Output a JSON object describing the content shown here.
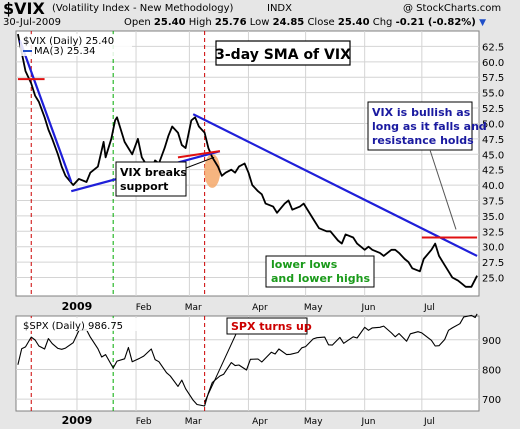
{
  "header": {
    "symbol": "$VIX",
    "description": "(Volatility Index - New Methodology)",
    "exchange": "INDX",
    "copyright": "@ StockCharts.com",
    "date": "30-Jul-2009",
    "open_label": "Open",
    "open": "25.40",
    "high_label": "High",
    "high": "25.76",
    "low_label": "Low",
    "low": "24.85",
    "close_label": "Close",
    "close": "25.40",
    "chg_label": "Chg",
    "chg": "-0.21 (-0.82%)",
    "chg_arrow": "▼"
  },
  "chart_data": [
    {
      "type": "line",
      "legend": [
        "$VIX (Daily) 25.40",
        "MA(3) 25.34"
      ],
      "title_box": "3-day SMA of VIX",
      "ylim": [
        22,
        65
      ],
      "y_ticks": [
        "25.0",
        "27.5",
        "30.0",
        "32.5",
        "35.0",
        "37.5",
        "40.0",
        "42.5",
        "45.0",
        "47.5",
        "50.0",
        "52.5",
        "55.0",
        "57.5",
        "60.0",
        "62.5"
      ],
      "x_tick_labels": [
        "2009",
        "Feb",
        "Mar",
        "Apr",
        "May",
        "Jun",
        "Jul"
      ],
      "series": [
        {
          "name": "MA(3)",
          "color": "#000000",
          "points": [
            [
              "2008-12-01",
              64.5
            ],
            [
              "2008-12-03",
              61.5
            ],
            [
              "2008-12-05",
              58.5
            ],
            [
              "2008-12-08",
              56.5
            ],
            [
              "2008-12-10",
              54.5
            ],
            [
              "2008-12-12",
              53.5
            ],
            [
              "2008-12-15",
              51.0
            ],
            [
              "2008-12-17",
              49.0
            ],
            [
              "2008-12-19",
              47.5
            ],
            [
              "2008-12-22",
              45.0
            ],
            [
              "2008-12-24",
              43.0
            ],
            [
              "2008-12-26",
              41.5
            ],
            [
              "2008-12-30",
              40.0
            ],
            [
              "2009-01-02",
              41.0
            ],
            [
              "2009-01-06",
              40.5
            ],
            [
              "2009-01-08",
              42.0
            ],
            [
              "2009-01-12",
              43.0
            ],
            [
              "2009-01-15",
              47.0
            ],
            [
              "2009-01-16",
              44.5
            ],
            [
              "2009-01-19",
              47.5
            ],
            [
              "2009-01-21",
              50.5
            ],
            [
              "2009-01-22",
              51.0
            ],
            [
              "2009-01-26",
              47.0
            ],
            [
              "2009-01-28",
              46.0
            ],
            [
              "2009-01-30",
              45.0
            ],
            [
              "2009-02-02",
              47.5
            ],
            [
              "2009-02-04",
              44.5
            ],
            [
              "2009-02-06",
              43.5
            ],
            [
              "2009-02-09",
              42.5
            ],
            [
              "2009-02-11",
              44.0
            ],
            [
              "2009-02-13",
              43.5
            ],
            [
              "2009-02-16",
              46.0
            ],
            [
              "2009-02-18",
              48.0
            ],
            [
              "2009-02-20",
              49.5
            ],
            [
              "2009-02-23",
              48.5
            ],
            [
              "2009-02-25",
              46.5
            ],
            [
              "2009-02-27",
              46.0
            ],
            [
              "2009-03-02",
              50.5
            ],
            [
              "2009-03-04",
              51.0
            ],
            [
              "2009-03-06",
              49.5
            ],
            [
              "2009-03-09",
              48.5
            ],
            [
              "2009-03-11",
              46.0
            ],
            [
              "2009-03-13",
              44.5
            ],
            [
              "2009-03-16",
              43.0
            ],
            [
              "2009-03-18",
              41.5
            ],
            [
              "2009-03-20",
              42.0
            ],
            [
              "2009-03-23",
              42.5
            ],
            [
              "2009-03-25",
              42.0
            ],
            [
              "2009-03-27",
              43.0
            ],
            [
              "2009-03-30",
              43.5
            ],
            [
              "2009-04-01",
              42.0
            ],
            [
              "2009-04-03",
              40.0
            ],
            [
              "2009-04-06",
              39.0
            ],
            [
              "2009-04-08",
              38.5
            ],
            [
              "2009-04-10",
              37.0
            ],
            [
              "2009-04-14",
              36.5
            ],
            [
              "2009-04-16",
              35.5
            ],
            [
              "2009-04-20",
              37.0
            ],
            [
              "2009-04-22",
              37.5
            ],
            [
              "2009-04-24",
              36.0
            ],
            [
              "2009-04-28",
              36.5
            ],
            [
              "2009-04-30",
              37.0
            ],
            [
              "2009-05-04",
              35.0
            ],
            [
              "2009-05-06",
              34.0
            ],
            [
              "2009-05-08",
              33.0
            ],
            [
              "2009-05-12",
              32.5
            ],
            [
              "2009-05-14",
              32.5
            ],
            [
              "2009-05-18",
              31.0
            ],
            [
              "2009-05-20",
              30.5
            ],
            [
              "2009-05-22",
              32.0
            ],
            [
              "2009-05-26",
              31.5
            ],
            [
              "2009-05-28",
              30.5
            ],
            [
              "2009-06-01",
              29.5
            ],
            [
              "2009-06-03",
              30.0
            ],
            [
              "2009-06-05",
              29.5
            ],
            [
              "2009-06-09",
              29.0
            ],
            [
              "2009-06-11",
              28.5
            ],
            [
              "2009-06-15",
              29.5
            ],
            [
              "2009-06-17",
              29.5
            ],
            [
              "2009-06-19",
              29.0
            ],
            [
              "2009-06-22",
              28.0
            ],
            [
              "2009-06-24",
              27.5
            ],
            [
              "2009-06-26",
              26.5
            ],
            [
              "2009-06-30",
              26.0
            ],
            [
              "2009-07-02",
              28.0
            ],
            [
              "2009-07-06",
              29.5
            ],
            [
              "2009-07-08",
              30.5
            ],
            [
              "2009-07-10",
              28.5
            ],
            [
              "2009-07-13",
              27.0
            ],
            [
              "2009-07-15",
              26.0
            ],
            [
              "2009-07-17",
              25.0
            ],
            [
              "2009-07-20",
              24.5
            ],
            [
              "2009-07-22",
              24.0
            ],
            [
              "2009-07-24",
              23.5
            ],
            [
              "2009-07-27",
              23.5
            ],
            [
              "2009-07-30",
              25.3
            ]
          ]
        }
      ],
      "annotations": {
        "trend_up_line": [
          [
            "2008-12-29",
            39.0
          ],
          [
            "2009-03-17",
            45.5
          ]
        ],
        "trend_down_line_1": [
          [
            "2008-12-02",
            63.5
          ],
          [
            "2008-12-29",
            40.5
          ]
        ],
        "trend_down_line_2": [
          [
            "2009-03-03",
            51.5
          ],
          [
            "2009-07-30",
            28.5
          ]
        ],
        "support_red_line": [
          [
            "2009-02-23",
            44.5
          ],
          [
            "2009-03-17",
            45.5
          ]
        ],
        "resistance_red_line": [
          [
            "2009-07-01",
            31.5
          ],
          [
            "2009-07-30",
            31.5
          ]
        ],
        "top_red_line": [
          [
            "2008-12-01",
            57.2
          ],
          [
            "2008-12-15",
            57.2
          ]
        ],
        "vlines": [
          {
            "date": "2008-12-08",
            "color": "#cc0000"
          },
          {
            "date": "2009-01-20",
            "color": "#00aa00"
          },
          {
            "date": "2009-03-09",
            "color": "#cc0000"
          }
        ],
        "callout_breaks": "VIX breaks support",
        "callout_breaks_lines": [
          "VIX breaks",
          "support"
        ],
        "callout_bullish_lines": [
          "VIX is bullish as",
          "long as it falls and",
          "resistance holds"
        ],
        "callout_lower_lines": [
          "lower lows",
          "and lower highs"
        ]
      }
    },
    {
      "type": "line",
      "legend": [
        "$SPX (Daily) 986.75"
      ],
      "ylim": [
        660,
        980
      ],
      "y_ticks": [
        "700",
        "800",
        "900"
      ],
      "x_tick_labels": [
        "2009",
        "Feb",
        "Mar",
        "Apr",
        "May",
        "Jun",
        "Jul"
      ],
      "series": [
        {
          "name": "$SPX",
          "color": "#000000",
          "points": [
            [
              "2008-12-01",
              816
            ],
            [
              "2008-12-03",
              870
            ],
            [
              "2008-12-05",
              876
            ],
            [
              "2008-12-08",
              909
            ],
            [
              "2008-12-10",
              899
            ],
            [
              "2008-12-12",
              879
            ],
            [
              "2008-12-15",
              869
            ],
            [
              "2008-12-17",
              904
            ],
            [
              "2008-12-19",
              887
            ],
            [
              "2008-12-22",
              871
            ],
            [
              "2008-12-24",
              868
            ],
            [
              "2008-12-26",
              872
            ],
            [
              "2008-12-30",
              890
            ],
            [
              "2009-01-02",
              931
            ],
            [
              "2009-01-06",
              934
            ],
            [
              "2009-01-08",
              909
            ],
            [
              "2009-01-12",
              870
            ],
            [
              "2009-01-14",
              842
            ],
            [
              "2009-01-16",
              850
            ],
            [
              "2009-01-20",
              805
            ],
            [
              "2009-01-22",
              828
            ],
            [
              "2009-01-26",
              836
            ],
            [
              "2009-01-28",
              874
            ],
            [
              "2009-01-30",
              826
            ],
            [
              "2009-02-03",
              838
            ],
            [
              "2009-02-05",
              845
            ],
            [
              "2009-02-09",
              869
            ],
            [
              "2009-02-11",
              833
            ],
            [
              "2009-02-13",
              826
            ],
            [
              "2009-02-17",
              789
            ],
            [
              "2009-02-19",
              778
            ],
            [
              "2009-02-23",
              743
            ],
            [
              "2009-02-25",
              764
            ],
            [
              "2009-02-27",
              735
            ],
            [
              "2009-03-03",
              696
            ],
            [
              "2009-03-05",
              682
            ],
            [
              "2009-03-09",
              677
            ],
            [
              "2009-03-11",
              721
            ],
            [
              "2009-03-13",
              756
            ],
            [
              "2009-03-17",
              778
            ],
            [
              "2009-03-19",
              784
            ],
            [
              "2009-03-23",
              823
            ],
            [
              "2009-03-25",
              813
            ],
            [
              "2009-03-27",
              815
            ],
            [
              "2009-03-31",
              798
            ],
            [
              "2009-04-02",
              834
            ],
            [
              "2009-04-06",
              835
            ],
            [
              "2009-04-08",
              825
            ],
            [
              "2009-04-13",
              858
            ],
            [
              "2009-04-15",
              852
            ],
            [
              "2009-04-17",
              869
            ],
            [
              "2009-04-21",
              850
            ],
            [
              "2009-04-23",
              851
            ],
            [
              "2009-04-27",
              857
            ],
            [
              "2009-04-29",
              873
            ],
            [
              "2009-05-01",
              877
            ],
            [
              "2009-05-05",
              903
            ],
            [
              "2009-05-07",
              907
            ],
            [
              "2009-05-11",
              909
            ],
            [
              "2009-05-13",
              883
            ],
            [
              "2009-05-15",
              882
            ],
            [
              "2009-05-19",
              908
            ],
            [
              "2009-05-21",
              888
            ],
            [
              "2009-05-26",
              910
            ],
            [
              "2009-05-28",
              906
            ],
            [
              "2009-06-01",
              942
            ],
            [
              "2009-06-03",
              932
            ],
            [
              "2009-06-05",
              940
            ],
            [
              "2009-06-09",
              942
            ],
            [
              "2009-06-11",
              946
            ],
            [
              "2009-06-15",
              923
            ],
            [
              "2009-06-17",
              910
            ],
            [
              "2009-06-19",
              921
            ],
            [
              "2009-06-23",
              895
            ],
            [
              "2009-06-25",
              920
            ],
            [
              "2009-06-29",
              927
            ],
            [
              "2009-07-01",
              923
            ],
            [
              "2009-07-06",
              898
            ],
            [
              "2009-07-08",
              879
            ],
            [
              "2009-07-10",
              880
            ],
            [
              "2009-07-13",
              901
            ],
            [
              "2009-07-15",
              932
            ],
            [
              "2009-07-17",
              940
            ],
            [
              "2009-07-21",
              954
            ],
            [
              "2009-07-23",
              977
            ],
            [
              "2009-07-27",
              982
            ],
            [
              "2009-07-29",
              975
            ],
            [
              "2009-07-30",
              987
            ]
          ]
        }
      ],
      "annotations": {
        "callout_spx": "SPX turns up"
      }
    }
  ],
  "colors": {
    "background": "#e6e6e6",
    "panel": "#ffffff",
    "grid": "#d4d4d4",
    "trendline": "#1f1fd9",
    "redline": "#e01010",
    "greenline": "#1a9a1a",
    "ellipse": "#f5a86a",
    "title_red": "#cc0000"
  }
}
